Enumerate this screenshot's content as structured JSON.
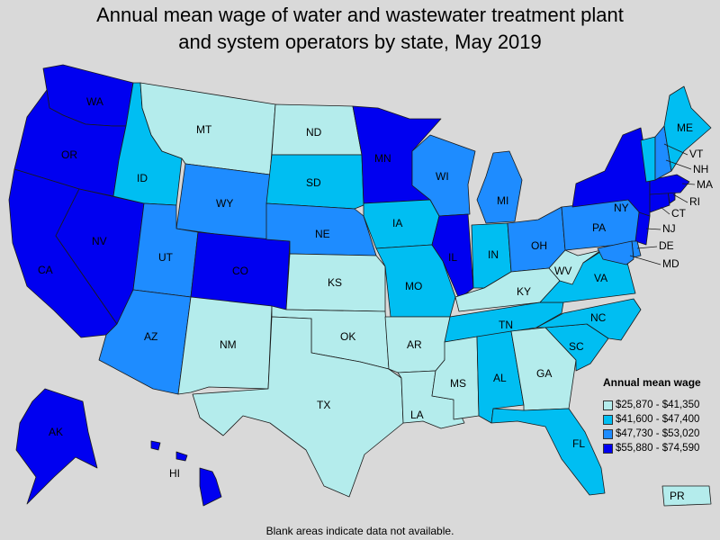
{
  "title_lines": [
    "Annual mean wage of water and wastewater treatment plant",
    "and system operators by state, May 2019"
  ],
  "legend": {
    "title": "Annual mean wage",
    "items": [
      {
        "label": "$25,870 - $41,350",
        "color": "#b4ecec"
      },
      {
        "label": "$41,600 - $47,400",
        "color": "#00bef2"
      },
      {
        "label": "$47,730 - $53,020",
        "color": "#1e8cff"
      },
      {
        "label": "$55,880 - $74,590",
        "color": "#0000f0"
      }
    ]
  },
  "note": "Blank areas indicate data not available.",
  "states": {
    "WA": 3,
    "OR": 3,
    "CA": 3,
    "NV": 3,
    "ID": 1,
    "MT": 0,
    "WY": 2,
    "UT": 2,
    "AZ": 2,
    "CO": 3,
    "NM": 0,
    "ND": 0,
    "SD": 1,
    "NE": 2,
    "KS": 0,
    "OK": 0,
    "TX": 0,
    "MN": 3,
    "IA": 1,
    "MO": 1,
    "AR": 0,
    "LA": 0,
    "WI": 2,
    "IL": 3,
    "MI": 2,
    "IN": 1,
    "OH": 2,
    "KY": 0,
    "TN": 1,
    "MS": 0,
    "AL": 1,
    "GA": 0,
    "FL": 1,
    "SC": 1,
    "NC": 1,
    "VA": 1,
    "WV": 0,
    "PA": 2,
    "NY": 3,
    "ME": 1,
    "VT": 1,
    "NH": 2,
    "MA": 3,
    "RI": 3,
    "CT": 3,
    "NJ": 3,
    "DE": 2,
    "MD": 2,
    "AK": 3,
    "HI": 3,
    "PR": 0
  }
}
